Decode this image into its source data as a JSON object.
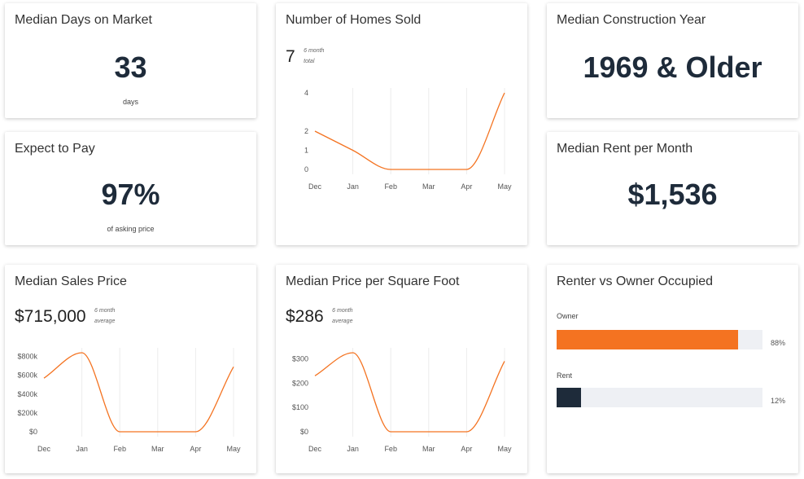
{
  "colors": {
    "orange": "#f47321",
    "navy": "#1e2b3a",
    "track": "#eef0f4"
  },
  "cards": {
    "days_on_market": {
      "title": "Median Days on Market",
      "value": "33",
      "sub": "days"
    },
    "expect_to_pay": {
      "title": "Expect to Pay",
      "value": "97%",
      "sub": "of asking price"
    },
    "homes_sold": {
      "title": "Number of Homes Sold",
      "summary": "7",
      "note1": "6 month",
      "note2": "total"
    },
    "construction_year": {
      "title": "Median Construction Year",
      "value": "1969 & Older"
    },
    "rent": {
      "title": "Median Rent per Month",
      "value": "$1,536"
    },
    "sales_price": {
      "title": "Median Sales Price",
      "summary": "$715,000",
      "note1": "6 month",
      "note2": "average"
    },
    "price_sqft": {
      "title": "Median Price per Square Foot",
      "summary": "$286",
      "note1": "6 month",
      "note2": "average"
    },
    "occupancy": {
      "title": "Renter vs Owner Occupied"
    }
  },
  "chart_data": [
    {
      "id": "homes_sold",
      "type": "line",
      "categories": [
        "Dec",
        "Jan",
        "Feb",
        "Mar",
        "Apr",
        "May"
      ],
      "values": [
        2,
        1,
        0,
        0,
        0,
        4
      ],
      "yticks": [
        0,
        1,
        2,
        4
      ],
      "ytick_labels": [
        "0",
        "1",
        "2",
        "4"
      ],
      "ylim": [
        0,
        4
      ],
      "grid": "vertical"
    },
    {
      "id": "sales_price",
      "type": "line",
      "categories": [
        "Dec",
        "Jan",
        "Feb",
        "Mar",
        "Apr",
        "May"
      ],
      "values": [
        570000,
        840000,
        0,
        0,
        0,
        690000
      ],
      "yticks": [
        0,
        200000,
        400000,
        600000,
        800000
      ],
      "ytick_labels": [
        "$0",
        "$200k",
        "$400k",
        "$600k",
        "$800k"
      ],
      "ylim": [
        0,
        840000
      ],
      "grid": "vertical"
    },
    {
      "id": "price_sqft",
      "type": "line",
      "categories": [
        "Dec",
        "Jan",
        "Feb",
        "Mar",
        "Apr",
        "May"
      ],
      "values": [
        230,
        325,
        0,
        0,
        0,
        290
      ],
      "yticks": [
        0,
        100,
        200,
        300
      ],
      "ytick_labels": [
        "$0",
        "$100",
        "$200",
        "$300"
      ],
      "ylim": [
        0,
        325
      ],
      "grid": "vertical"
    },
    {
      "id": "occupancy",
      "type": "bar",
      "categories": [
        "Owner",
        "Rent"
      ],
      "values": [
        88,
        12
      ],
      "value_labels": [
        "88%",
        "12%"
      ],
      "ylim": [
        0,
        100
      ]
    }
  ]
}
